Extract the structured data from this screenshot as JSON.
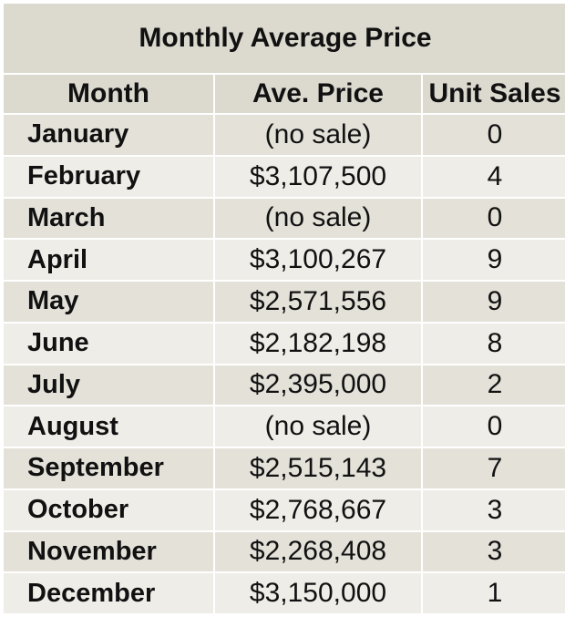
{
  "colors": {
    "header_bg": "#dcd9cf",
    "row_dark_bg": "#e4e1d9",
    "row_light_bg": "#efede8",
    "text": "#111111"
  },
  "chart_data": {
    "type": "table",
    "title": "Monthly Average Price",
    "columns": [
      "Month",
      "Ave. Price",
      "Unit Sales"
    ],
    "rows": [
      [
        "January",
        "(no sale)",
        "0"
      ],
      [
        "February",
        "$3,107,500",
        "4"
      ],
      [
        "March",
        "(no sale)",
        "0"
      ],
      [
        "April",
        "$3,100,267",
        "9"
      ],
      [
        "May",
        "$2,571,556",
        "9"
      ],
      [
        "June",
        "$2,182,198",
        "8"
      ],
      [
        "July",
        "$2,395,000",
        "2"
      ],
      [
        "August",
        "(no sale)",
        "0"
      ],
      [
        "September",
        "$2,515,143",
        "7"
      ],
      [
        "October",
        "$2,768,667",
        "3"
      ],
      [
        "November",
        "$2,268,408",
        "3"
      ],
      [
        "December",
        "$3,150,000",
        "1"
      ]
    ]
  }
}
